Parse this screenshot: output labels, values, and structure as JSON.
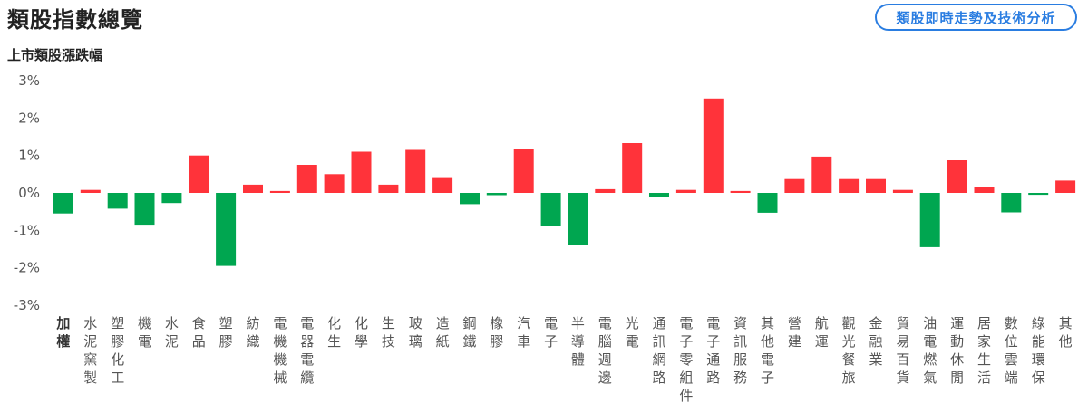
{
  "page_title": "類股指數總覽",
  "tech_button_label": "類股即時走勢及技術分析",
  "chart_subtitle": "上市類股漲跌幅",
  "colors": {
    "up": "#ff333a",
    "down": "#00a650",
    "axis_text": "#555555",
    "grid": "#e6e6e6",
    "accent": "#2a7de1"
  },
  "chart_data": {
    "type": "bar",
    "title": "上市類股漲跌幅",
    "ylim": [
      -3,
      3
    ],
    "yticks": [
      "3%",
      "2%",
      "1%",
      "0%",
      "-1%",
      "-2%",
      "-3%"
    ],
    "grid": false,
    "categories": [
      "加權",
      "水泥窯製",
      "塑膠化工",
      "機電",
      "水泥",
      "食品",
      "塑膠",
      "紡織",
      "電機機械",
      "電器電纜",
      "化生",
      "化學",
      "生技",
      "玻璃",
      "造紙",
      "鋼鐵",
      "橡膠",
      "汽車",
      "電子",
      "半導體",
      "電腦週邊",
      "光電",
      "通訊網路",
      "電子零組件",
      "電子通路",
      "資訊服務",
      "其他電子",
      "營建",
      "航運",
      "觀光餐旅",
      "金融業",
      "貿易百貨",
      "油電燃氣",
      "運動休閒",
      "居家生活",
      "數位雲端",
      "綠能環保",
      "其他"
    ],
    "values": [
      -0.55,
      0.08,
      -0.42,
      -0.85,
      -0.27,
      1.0,
      -1.95,
      0.22,
      0.05,
      0.75,
      0.5,
      1.1,
      0.22,
      1.15,
      0.42,
      -0.3,
      -0.06,
      1.18,
      -0.88,
      -1.4,
      0.1,
      1.33,
      -0.1,
      0.08,
      2.52,
      0.05,
      -0.53,
      0.37,
      0.97,
      0.37,
      0.37,
      0.08,
      -1.45,
      0.87,
      0.15,
      -0.52,
      -0.05,
      0.33
    ]
  }
}
